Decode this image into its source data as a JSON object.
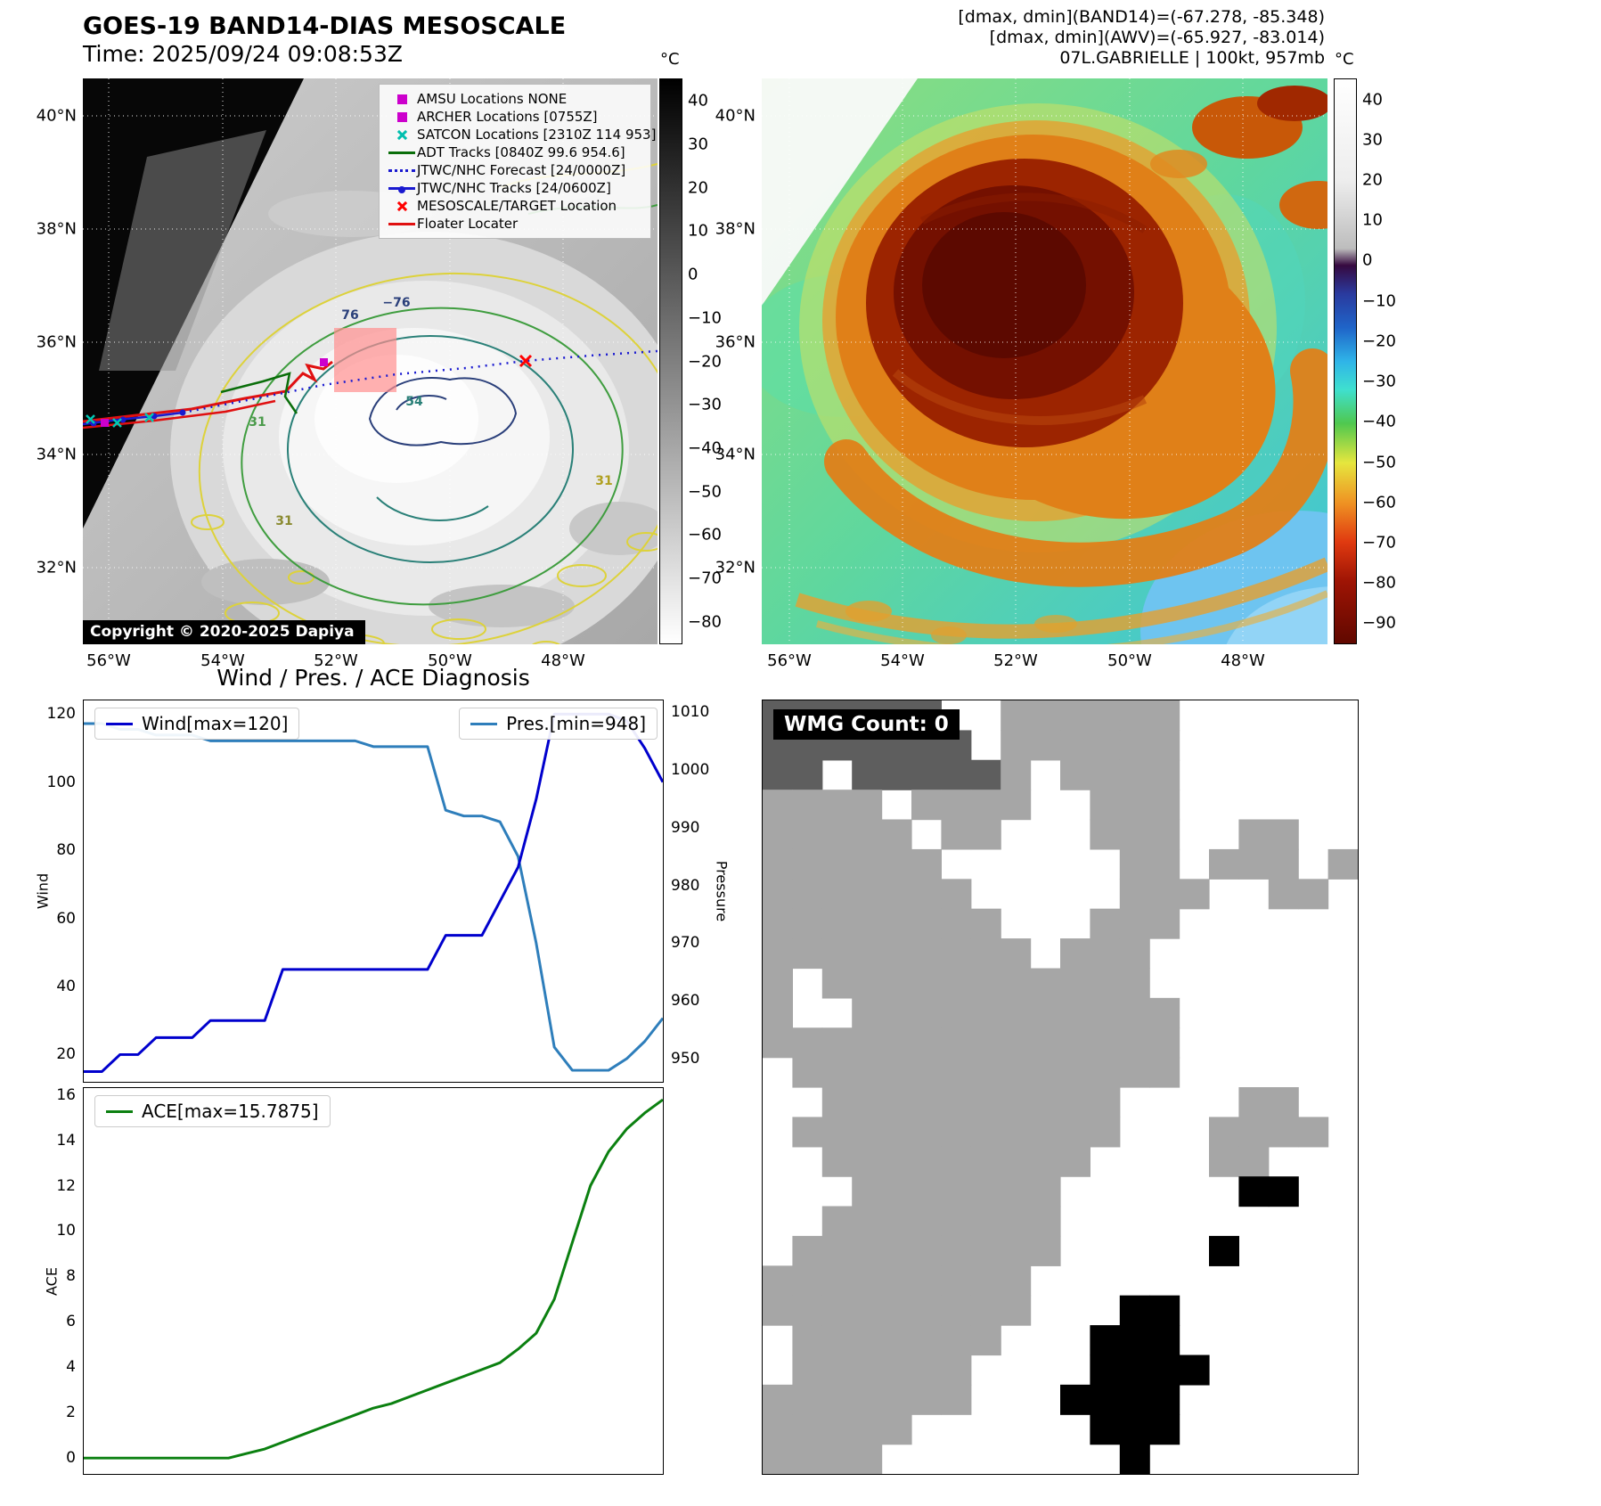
{
  "top_left": {
    "title": "GOES-19 BAND14-DIAS MESOSCALE",
    "subtitle": "Time: 2025/09/24 09:08:53Z",
    "copyright": "Copyright © 2020-2025 Dapiya",
    "colorbar_unit": "°C",
    "colorbar_ticks": [
      "40",
      "30",
      "20",
      "10",
      "0",
      "−10",
      "−20",
      "−30",
      "−40",
      "−50",
      "−60",
      "−70",
      "−80"
    ],
    "lat_ticks": [
      "40°N",
      "38°N",
      "36°N",
      "34°N",
      "32°N"
    ],
    "lon_ticks": [
      "56°W",
      "54°W",
      "52°W",
      "50°W",
      "48°W"
    ],
    "contour_labels": [
      "−76",
      "76",
      "54",
      "31",
      "31",
      "31"
    ],
    "legend": [
      {
        "marker": "square",
        "color": "#cc00cc",
        "label": "AMSU Locations NONE"
      },
      {
        "marker": "square",
        "color": "#cc00cc",
        "label": "ARCHER Locations [0755Z]"
      },
      {
        "marker": "x",
        "color": "#00bfae",
        "label": "SATCON Locations [2310Z 114 953]"
      },
      {
        "marker": "line",
        "color": "#0a6e0a",
        "label": "ADT Tracks [0840Z 99.6 954.6]"
      },
      {
        "marker": "dotted",
        "color": "#1a1ad0",
        "label": "JTWC/NHC Forecast [24/0000Z]"
      },
      {
        "marker": "linedot",
        "color": "#1a1ad0",
        "label": "JTWC/NHC Tracks [24/0600Z]"
      },
      {
        "marker": "x",
        "color": "#ff0000",
        "label": "MESOSCALE/TARGET Location"
      },
      {
        "marker": "line",
        "color": "#e01010",
        "label": "Floater Locater"
      }
    ]
  },
  "top_right": {
    "header_lines": [
      "[dmax, dmin](BAND14)=(-67.278, -85.348)",
      "[dmax, dmin](AWV)=(-65.927, -83.014)",
      "07L.GABRIELLE | 100kt, 957mb"
    ],
    "colorbar_unit": "°C",
    "colorbar_ticks": [
      "40",
      "30",
      "20",
      "10",
      "0",
      "−10",
      "−20",
      "−30",
      "−40",
      "−50",
      "−60",
      "−70",
      "−80",
      "−90"
    ],
    "lat_ticks": [
      "40°N",
      "38°N",
      "36°N",
      "34°N",
      "32°N"
    ],
    "lon_ticks": [
      "56°W",
      "54°W",
      "52°W",
      "50°W",
      "48°W"
    ]
  },
  "chart_data": [
    {
      "type": "line",
      "title": "Wind / Pres. / ACE Diagnosis",
      "ylabel_left": "Wind",
      "ylabel_right": "Pressure",
      "ylim_left": [
        12,
        124
      ],
      "ylim_right": [
        946,
        1012
      ],
      "left_ticks": [
        20,
        40,
        60,
        80,
        100,
        120
      ],
      "right_ticks": [
        950,
        960,
        970,
        980,
        990,
        1000,
        1010
      ],
      "grid": false,
      "series": [
        {
          "name": "Wind[max=120]",
          "color": "#0000cd",
          "axis": "left",
          "values": [
            15,
            15,
            20,
            20,
            25,
            25,
            25,
            30,
            30,
            30,
            30,
            45,
            45,
            45,
            45,
            45,
            45,
            45,
            45,
            45,
            55,
            55,
            55,
            65,
            75,
            95,
            120,
            120,
            120,
            120,
            118,
            110,
            100
          ]
        },
        {
          "name": "Pres.[min=948]",
          "color": "#2e7ebb",
          "axis": "right",
          "values": [
            1008,
            1008,
            1007,
            1007,
            1006,
            1006,
            1006,
            1005,
            1005,
            1005,
            1005,
            1005,
            1005,
            1005,
            1005,
            1005,
            1004,
            1004,
            1004,
            1004,
            993,
            992,
            992,
            991,
            985,
            970,
            952,
            948,
            948,
            948,
            950,
            953,
            957
          ]
        }
      ]
    },
    {
      "type": "line",
      "ylabel": "ACE",
      "ylim": [
        -0.7,
        16.3
      ],
      "ticks": [
        0,
        2,
        4,
        6,
        8,
        10,
        12,
        14,
        16
      ],
      "grid": false,
      "series": [
        {
          "name": "ACE[max=15.7875]",
          "color": "#0b8010",
          "values": [
            0,
            0,
            0,
            0,
            0,
            0,
            0,
            0,
            0,
            0.2,
            0.4,
            0.7,
            1.0,
            1.3,
            1.6,
            1.9,
            2.2,
            2.4,
            2.7,
            3.0,
            3.3,
            3.6,
            3.9,
            4.2,
            4.8,
            5.5,
            7.0,
            9.5,
            12.0,
            13.5,
            14.5,
            15.2,
            15.7875
          ]
        }
      ]
    },
    {
      "type": "heatmap",
      "title": "WMG Count: 0",
      "palette": {
        ".": "#ffffff",
        "g": "#a6a6a6",
        "d": "#5e5e5e",
        "b": "#000000"
      },
      "cell_values": [
        "dddddd..gggggg......",
        "ddddddd.gggggg......",
        "dd.dddddg.gggg......",
        "gggg.gggg..ggg......",
        "ggggg.gg...ggg..gg..",
        "gggggg......gg.ggg.g",
        "ggggggg.....ggg..gg.",
        "gggggggg...ggg......",
        "ggggggggg.ggg.......",
        "g.ggggggggggg.......",
        "g..ggggggggggg......",
        "gggggggggggggg......",
        ".ggggggggggggg......",
        "..gggggggggg....gg..",
        ".ggggggggggg...gggg.",
        "..ggggggggg....gg...",
        "...ggggggg......bb..",
        "..gggggggg..........",
        ".ggggggggg.....b....",
        "ggggggggg...........",
        "ggggggggg...bb......",
        ".ggggggg...bbb......",
        ".gggggg....bbbb.....",
        "ggggggg...bbbb......",
        "ggggg......bbb......",
        "gggg........b......."
      ]
    }
  ]
}
